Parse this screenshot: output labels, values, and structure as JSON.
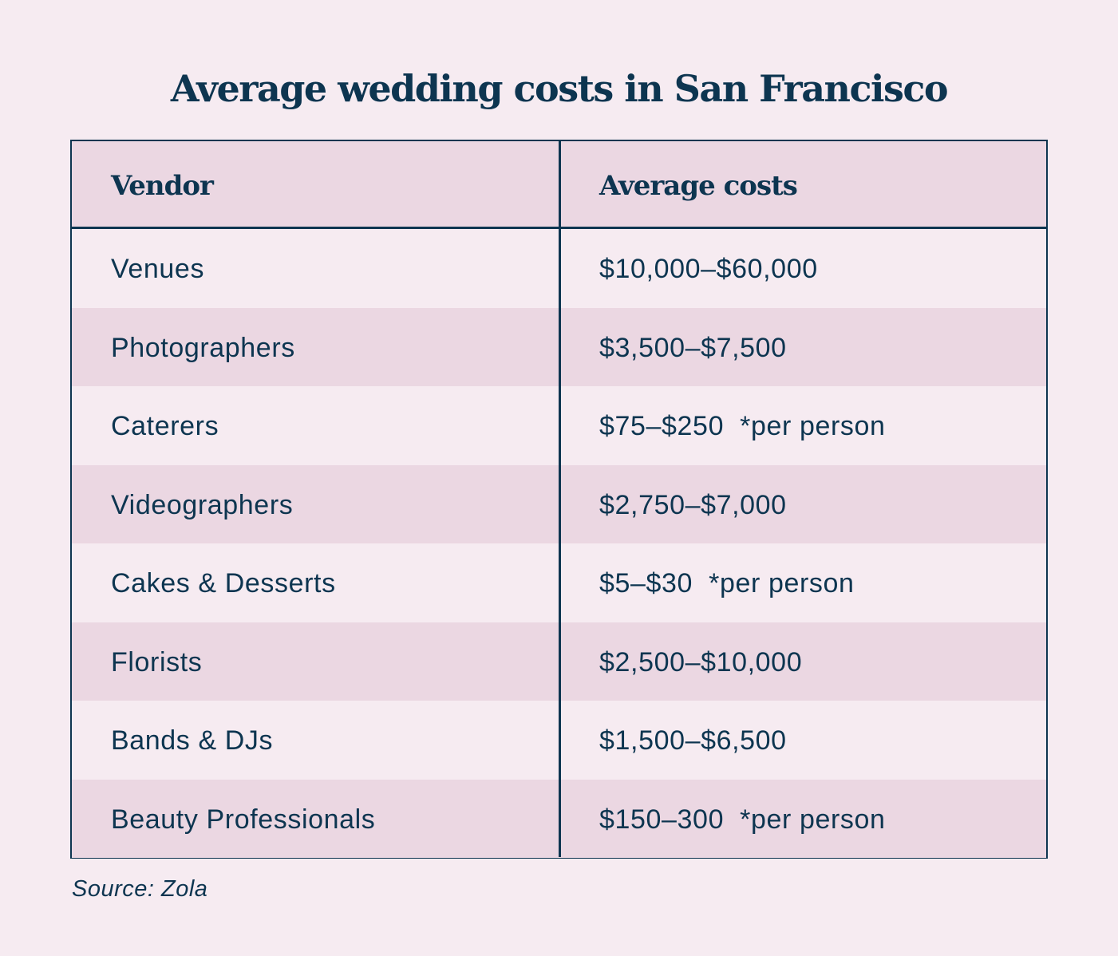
{
  "title": "Average wedding costs in San Francisco",
  "table": {
    "headers": [
      "Vendor",
      "Average costs"
    ],
    "rows": [
      [
        "Venues",
        "$10,000–$60,000"
      ],
      [
        "Photographers",
        "$3,500–$7,500"
      ],
      [
        "Caterers",
        "$75–$250  *per person"
      ],
      [
        "Videographers",
        "$2,750–$7,000"
      ],
      [
        "Cakes & Desserts",
        "$5–$30  *per person"
      ],
      [
        "Florists",
        "$2,500–$10,000"
      ],
      [
        "Bands & DJs",
        "$1,500–$6,500"
      ],
      [
        "Beauty Professionals",
        "$150–300  *per person"
      ]
    ]
  },
  "source": "Source: Zola",
  "colors": {
    "text": "#0d3550",
    "background": "#f6ebf1",
    "stripe": "#ebd7e2"
  }
}
